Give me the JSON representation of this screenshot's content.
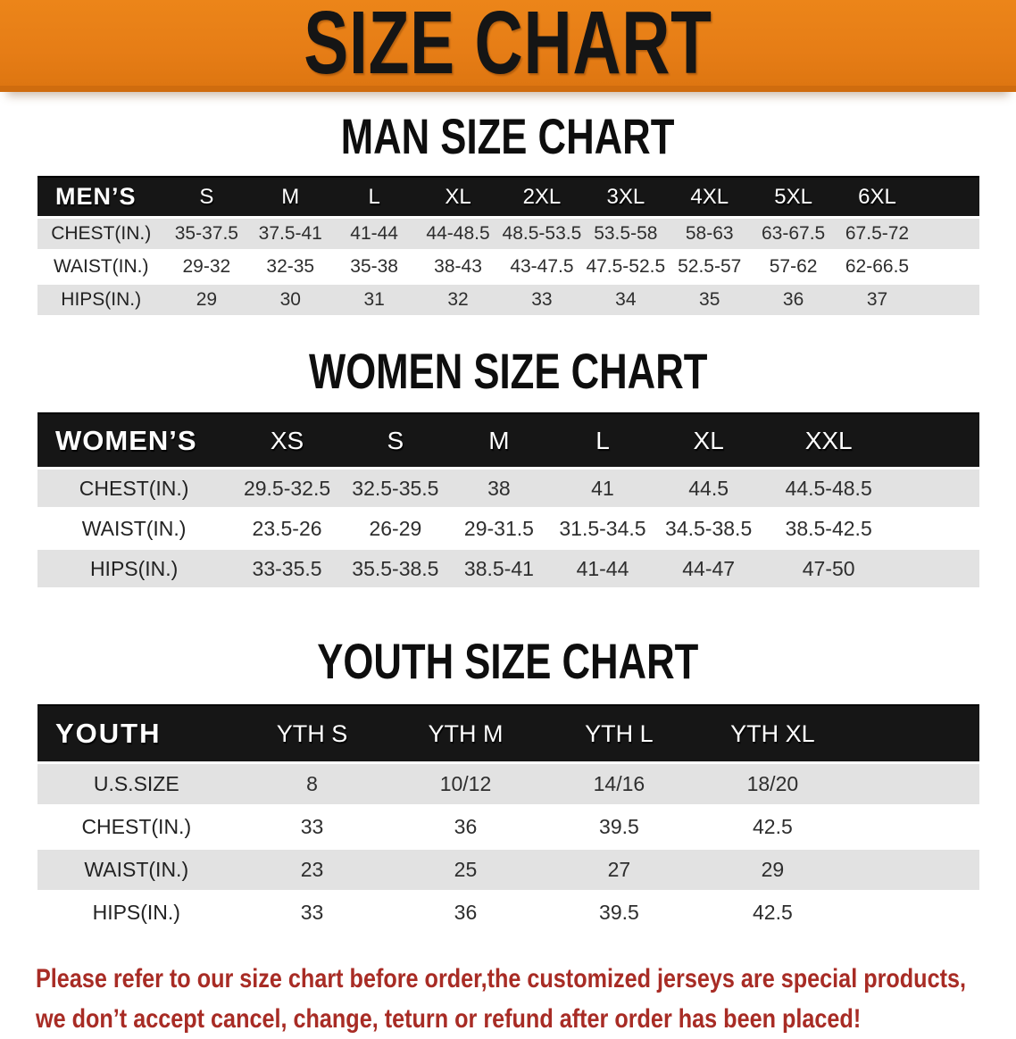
{
  "banner": {
    "title": "SIZE CHART",
    "bg_color": "#e67d16",
    "text_color": "#151515"
  },
  "sections": [
    {
      "heading": "MAN SIZE CHART",
      "header_label": "MEN’S",
      "sizes": [
        "S",
        "M",
        "L",
        "XL",
        "2XL",
        "3XL",
        "4XL",
        "5XL",
        "6XL"
      ],
      "rows": [
        {
          "label": "CHEST(IN.)",
          "values": [
            "35-37.5",
            "37.5-41",
            "41-44",
            "44-48.5",
            "48.5-53.5",
            "53.5-58",
            "58-63",
            "63-67.5",
            "67.5-72"
          ]
        },
        {
          "label": "WAIST(IN.)",
          "values": [
            "29-32",
            "32-35",
            "35-38",
            "38-43",
            "43-47.5",
            "47.5-52.5",
            "52.5-57",
            "57-62",
            "62-66.5"
          ]
        },
        {
          "label": "HIPS(IN.)",
          "values": [
            "29",
            "30",
            "31",
            "32",
            "33",
            "34",
            "35",
            "36",
            "37"
          ]
        }
      ]
    },
    {
      "heading": "WOMEN SIZE CHART",
      "header_label": "WOMEN’S",
      "sizes": [
        "XS",
        "S",
        "M",
        "L",
        "XL",
        "XXL"
      ],
      "rows": [
        {
          "label": "CHEST(IN.)",
          "values": [
            "29.5-32.5",
            "32.5-35.5",
            "38",
            "41",
            "44.5",
            "44.5-48.5"
          ]
        },
        {
          "label": "WAIST(IN.)",
          "values": [
            "23.5-26",
            "26-29",
            "29-31.5",
            "31.5-34.5",
            "34.5-38.5",
            "38.5-42.5"
          ]
        },
        {
          "label": "HIPS(IN.)",
          "values": [
            "33-35.5",
            "35.5-38.5",
            "38.5-41",
            "41-44",
            "44-47",
            "47-50"
          ]
        }
      ]
    },
    {
      "heading": "YOUTH SIZE CHART",
      "header_label": "YOUTH",
      "sizes": [
        "YTH S",
        "YTH M",
        "YTH L",
        "YTH XL"
      ],
      "rows": [
        {
          "label": "U.S.SIZE",
          "values": [
            "8",
            "10/12",
            "14/16",
            "18/20"
          ]
        },
        {
          "label": "CHEST(IN.)",
          "values": [
            "33",
            "36",
            "39.5",
            "42.5"
          ]
        },
        {
          "label": "WAIST(IN.)",
          "values": [
            "23",
            "25",
            "27",
            "29"
          ]
        },
        {
          "label": "HIPS(IN.)",
          "values": [
            "33",
            "36",
            "39.5",
            "42.5"
          ]
        }
      ]
    }
  ],
  "footer": {
    "line1": "Please refer to our size chart before order,the customized jerseys are special products,",
    "line2": "we don’t accept cancel, change, teturn or refund after order has been placed!",
    "text_color": "#a82c25"
  }
}
